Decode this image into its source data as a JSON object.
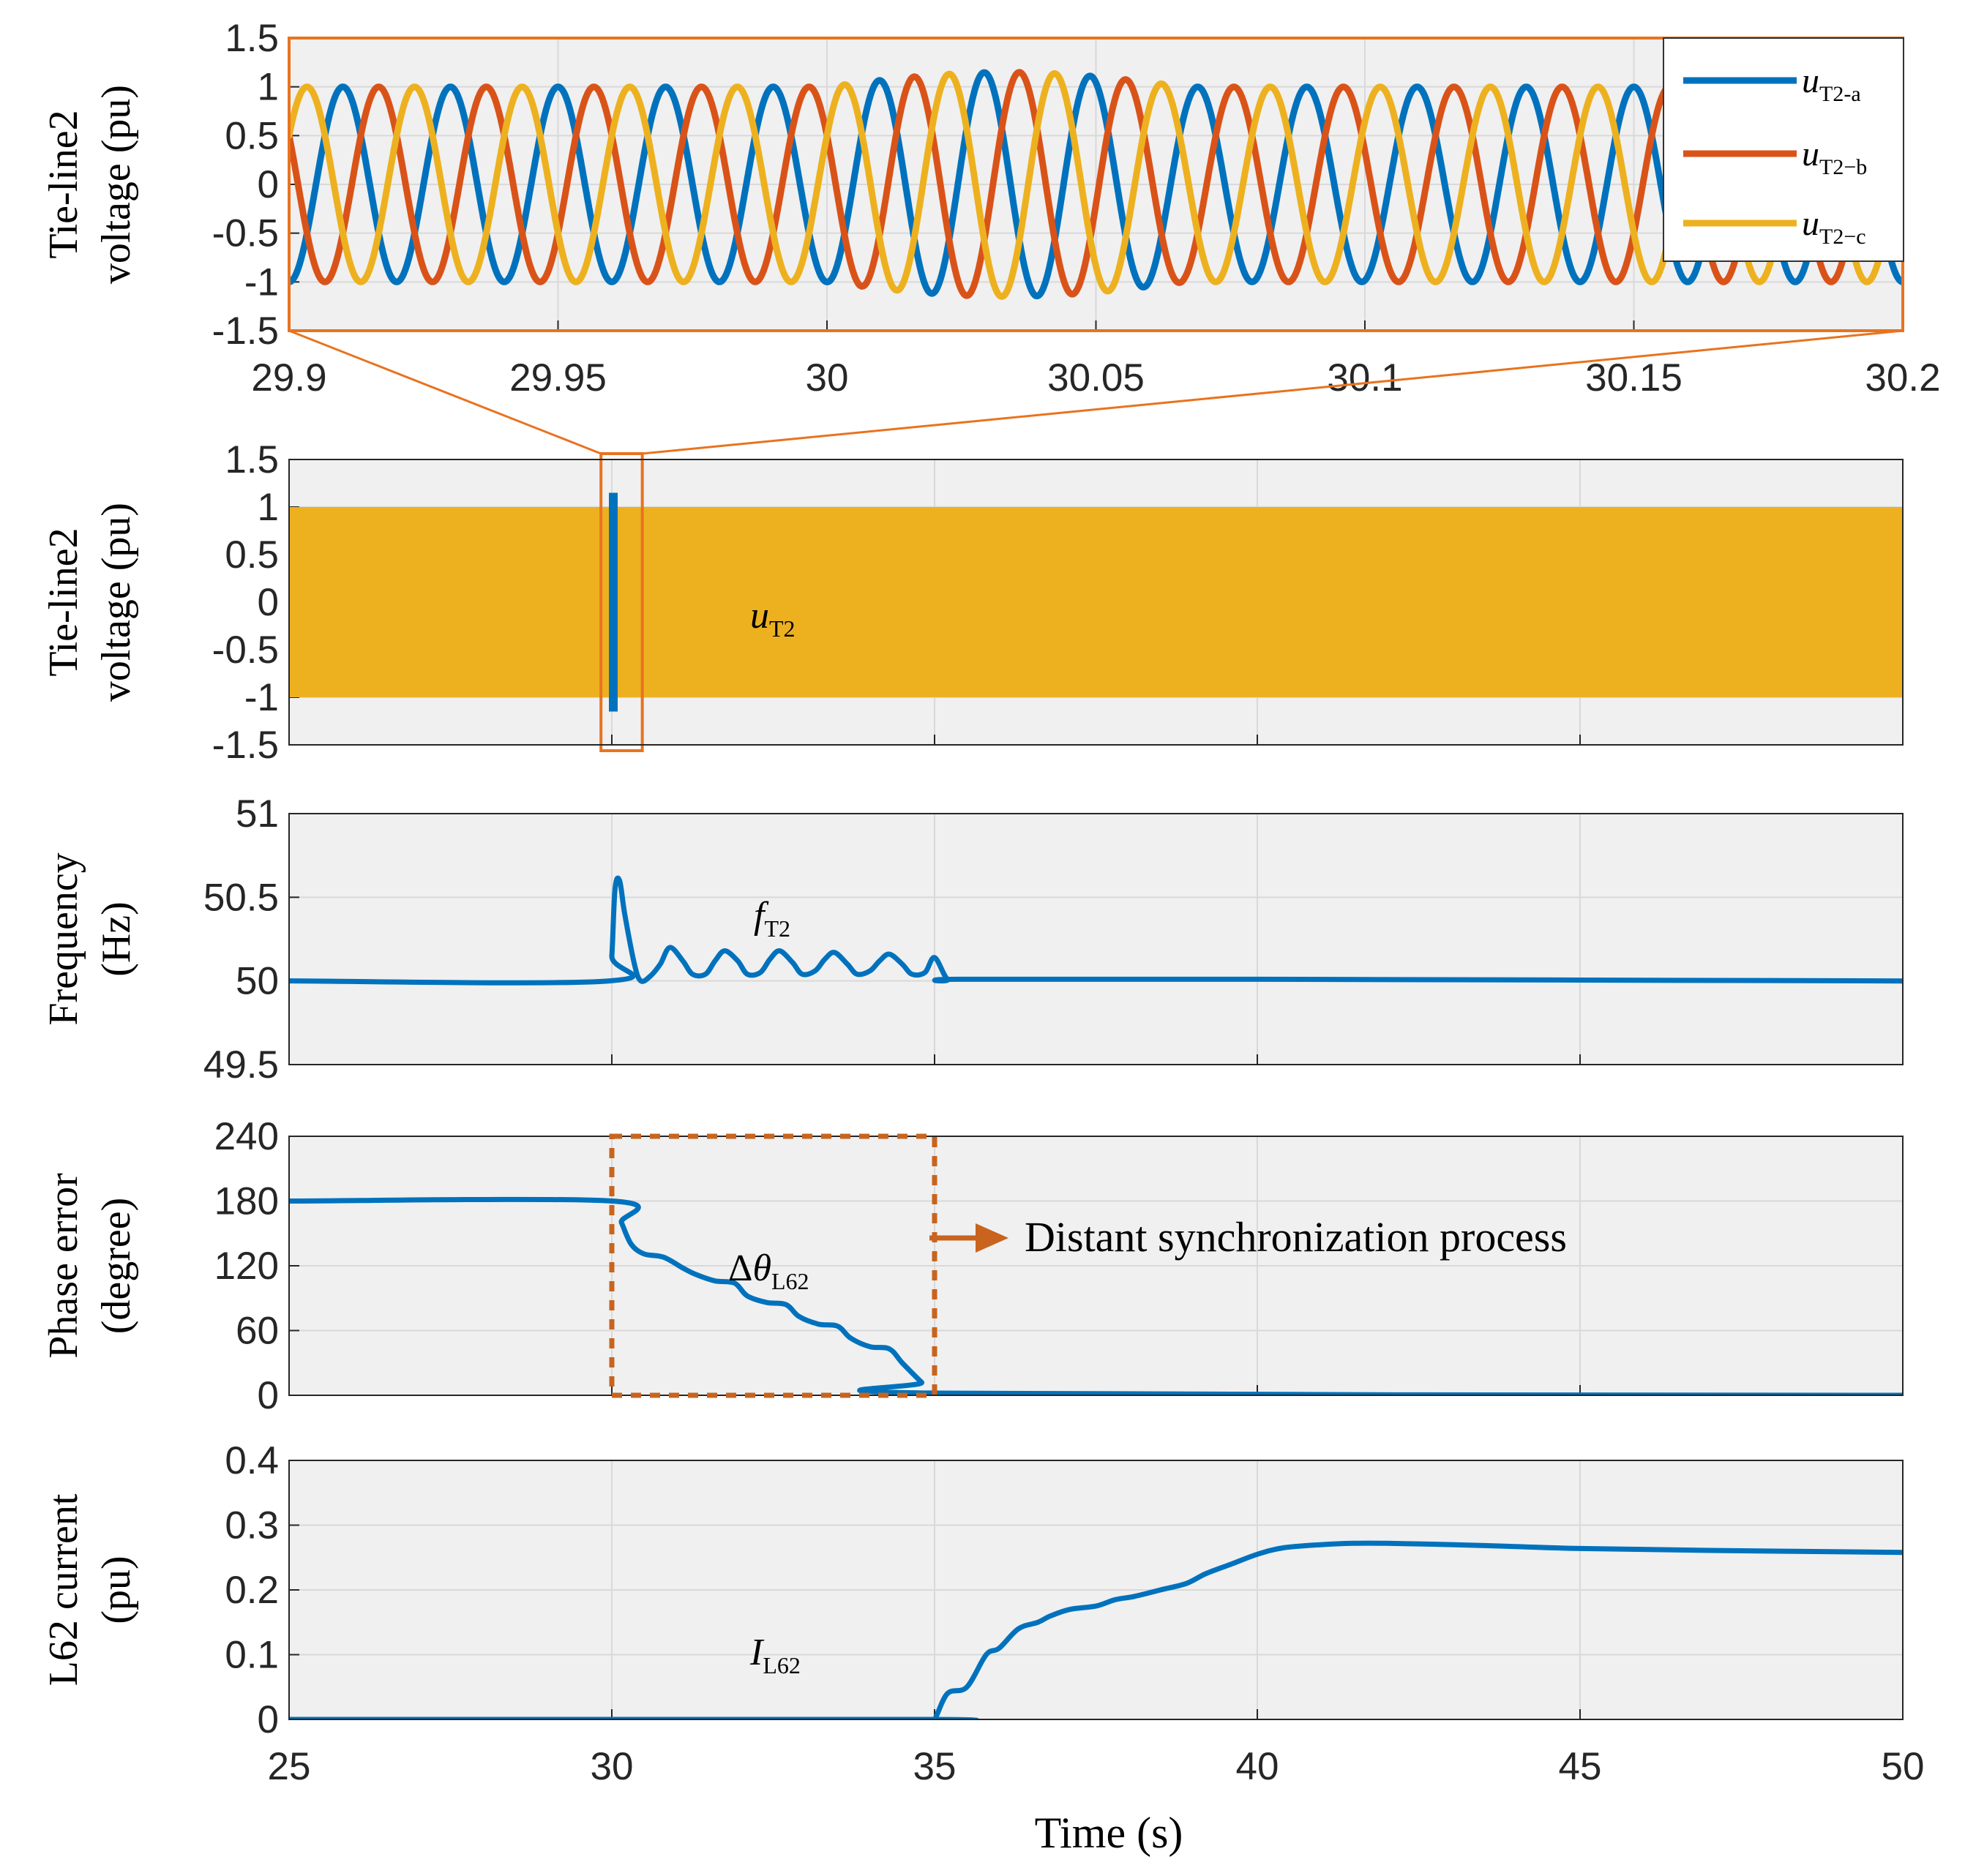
{
  "colors": {
    "a": "#0072BD",
    "b": "#D95319",
    "c": "#EDB120",
    "highlight": "#E8731F",
    "dashed": "#C8641E",
    "bg": "#F0F0F0",
    "grid": "#D9D9D9"
  },
  "xlabel": "Time (s)",
  "annotation": "Distant synchronization process",
  "chart_data": [
    {
      "id": "zoom",
      "type": "line",
      "ylabel": [
        "Tie-line2",
        "voltage (pu)"
      ],
      "xlim": [
        29.9,
        30.2
      ],
      "ylim": [
        -1.5,
        1.5
      ],
      "xticks": [
        "29.9",
        "29.95",
        "30",
        "30.05",
        "30.1",
        "30.15",
        "30.2"
      ],
      "yticks": [
        "1.5",
        "1",
        "0.5",
        "0",
        "-0.5",
        "-1",
        "-1.5"
      ],
      "frequency_hz": 50,
      "series": [
        {
          "name": "uT2-a",
          "label_main": "u",
          "label_sub": "T2-a",
          "color_key": "a",
          "phase_deg": 0
        },
        {
          "name": "uT2-b",
          "label_main": "u",
          "label_sub": "T2−b",
          "color_key": "b",
          "phase_deg": -120
        },
        {
          "name": "uT2-c",
          "label_main": "u",
          "label_sub": "T2−c",
          "color_key": "c",
          "phase_deg": 120
        }
      ],
      "disturbance": {
        "start": 30.0,
        "peak_amplitude": 1.15,
        "end": 30.07
      }
    },
    {
      "id": "overview",
      "type": "area",
      "ylabel": [
        "Tie-line2",
        "voltage (pu)"
      ],
      "xlim": [
        25,
        50
      ],
      "ylim": [
        -1.5,
        1.5
      ],
      "yticks": [
        "1.5",
        "1",
        "0.5",
        "0",
        "-0.5",
        "-1",
        "-1.5"
      ],
      "envelope": [
        -1,
        1
      ],
      "spike_at": 30.0,
      "spike_amplitude": 1.15,
      "zoom_window": [
        29.9,
        30.2
      ],
      "label_main": "u",
      "label_sub": "T2"
    },
    {
      "id": "frequency",
      "type": "line",
      "ylabel": [
        "Frequency",
        "(Hz)"
      ],
      "xlim": [
        25,
        50
      ],
      "ylim": [
        49.5,
        51
      ],
      "yticks": [
        "51",
        "50.5",
        "50",
        "49.5"
      ],
      "label_main": "f",
      "label_sub": "T2",
      "x": [
        25,
        29.95,
        30.0,
        30.05,
        30.12,
        30.2,
        30.35,
        30.45,
        30.6,
        30.75,
        30.9,
        31.1,
        31.25,
        31.45,
        31.6,
        31.75,
        31.95,
        32.1,
        32.3,
        32.45,
        32.6,
        32.8,
        32.95,
        33.15,
        33.3,
        33.45,
        33.65,
        33.8,
        34.0,
        34.15,
        34.3,
        34.5,
        34.65,
        34.85,
        35.0,
        35.2,
        35.4,
        40,
        50
      ],
      "y": [
        50.0,
        50.0,
        50.15,
        50.55,
        50.6,
        50.4,
        50.1,
        50.0,
        50.03,
        50.1,
        50.2,
        50.12,
        50.04,
        50.04,
        50.12,
        50.18,
        50.12,
        50.04,
        50.05,
        50.13,
        50.18,
        50.11,
        50.04,
        50.06,
        50.13,
        50.17,
        50.1,
        50.04,
        50.06,
        50.12,
        50.16,
        50.1,
        50.04,
        50.05,
        50.14,
        50.01,
        50.01,
        50.01,
        50.0
      ]
    },
    {
      "id": "phase",
      "type": "line",
      "ylabel": [
        "Phase error",
        "(degree)"
      ],
      "xlim": [
        25,
        50
      ],
      "ylim": [
        0,
        240
      ],
      "yticks": [
        "240",
        "180",
        "120",
        "60",
        "0"
      ],
      "label_main": "θ",
      "label_sym": "Δ",
      "label_sub": "L62",
      "dashed_box": {
        "x": [
          30,
          35
        ],
        "y": [
          0,
          240
        ]
      },
      "x": [
        25,
        30.0,
        30.15,
        30.3,
        30.5,
        30.8,
        31.1,
        31.3,
        31.6,
        31.9,
        32.1,
        32.4,
        32.7,
        32.9,
        33.2,
        33.5,
        33.7,
        34.0,
        34.3,
        34.5,
        34.8,
        35.0,
        50
      ],
      "y": [
        180,
        180,
        160,
        140,
        131,
        128,
        118,
        112,
        106,
        104,
        92,
        86,
        84,
        73,
        66,
        64,
        53,
        45,
        43,
        30,
        12,
        2,
        0
      ]
    },
    {
      "id": "current",
      "type": "line",
      "ylabel": [
        "L62 current",
        "(pu)"
      ],
      "xlim": [
        25,
        50
      ],
      "ylim": [
        0,
        0.4
      ],
      "yticks": [
        "0.4",
        "0.3",
        "0.2",
        "0.1",
        "0"
      ],
      "xticks": [
        "25",
        "30",
        "35",
        "40",
        "45",
        "50"
      ],
      "label_main": "I",
      "label_sub": "L62",
      "x": [
        25,
        34.9,
        35.0,
        35.2,
        35.5,
        35.8,
        36.0,
        36.3,
        36.6,
        36.8,
        37.1,
        37.5,
        37.8,
        38.1,
        38.5,
        38.9,
        39.2,
        39.6,
        40.0,
        40.4,
        41.0,
        41.5,
        42.0,
        43.0,
        44.0,
        45.0,
        47.0,
        50.0
      ],
      "y": [
        0.0,
        0.0,
        0.0,
        0.04,
        0.05,
        0.1,
        0.11,
        0.14,
        0.15,
        0.16,
        0.17,
        0.175,
        0.185,
        0.19,
        0.2,
        0.21,
        0.225,
        0.24,
        0.255,
        0.265,
        0.27,
        0.272,
        0.272,
        0.27,
        0.267,
        0.264,
        0.261,
        0.258
      ]
    }
  ]
}
